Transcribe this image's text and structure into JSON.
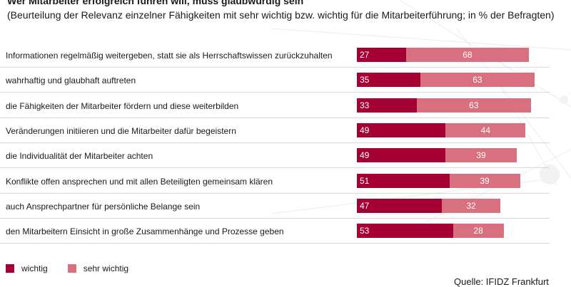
{
  "title": "Wer Mitarbeiter erfolgreich führen will, muss glaubwürdig sein",
  "subtitle": "(Beurteilung der Relevanz einzelner Fähigkeiten mit sehr wichtig bzw. wichtig für die Mitarbeiterführung; in % der Befragten)",
  "colors": {
    "wichtig": "#a50034",
    "sehr_wichtig": "#d9707f"
  },
  "legend": {
    "wichtig": "wichtig",
    "sehr_wichtig": "sehr wichtig"
  },
  "source": "Quelle: IFIDZ Frankfurt",
  "chart_data": {
    "type": "bar",
    "orientation": "horizontal",
    "stacked": true,
    "categories": [
      "Informationen regelmäßig weitergeben, statt sie als Herrschaftswissen zurückzuhalten",
      "wahrhaftig und glaubhaft auftreten",
      "die Fähigkeiten der Mitarbeiter fördern und diese weiterbilden",
      "Veränderungen initiieren und die Mitarbeiter dafür begeistern",
      "die Individualität der Mitarbeiter achten",
      "Konflikte offen ansprechen und mit allen Beteiligten gemeinsam klären",
      "auch Ansprechpartner für persönliche Belange sein",
      "den Mitarbeitern Einsicht in große Zusammenhänge und Prozesse geben"
    ],
    "series": [
      {
        "name": "wichtig",
        "values": [
          27,
          35,
          33,
          49,
          49,
          51,
          47,
          53
        ]
      },
      {
        "name": "sehr wichtig",
        "values": [
          68,
          63,
          63,
          44,
          39,
          39,
          32,
          28
        ]
      }
    ],
    "xlim": [
      0,
      100
    ],
    "legend_position": "bottom-left",
    "grid": false
  }
}
